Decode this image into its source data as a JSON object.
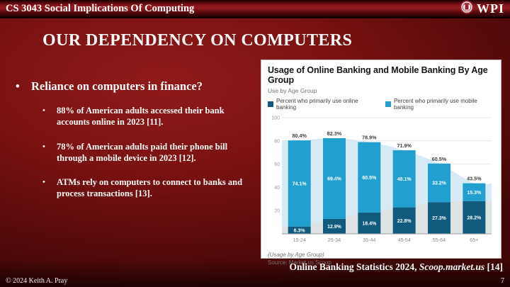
{
  "header": {
    "course_title": "CS 3043 Social Implications Of Computing",
    "logo_text": "WPI"
  },
  "slide": {
    "title": "OUR DEPENDENCY ON COMPUTERS",
    "bullets": {
      "main": "Reliance on computers in finance?",
      "sub": [
        "88% of American adults accessed their bank accounts online in 2023 [11].",
        "78% of American adults paid their phone bill through a mobile device in 2023 [12].",
        "ATMs rely on computers to connect to banks and process transactions [13]."
      ]
    },
    "caption": {
      "text": "Online Banking Statistics 2024, ",
      "italic": "Scoop.market.us",
      "suffix": " [14]"
    }
  },
  "footer": {
    "copyright": "© 2024 Keith A. Pray",
    "page_number": "7"
  },
  "chart_data": {
    "type": "bar",
    "stacked": true,
    "title": "Usage of Online Banking and Mobile Banking By Age Group",
    "subtitle": "Use by Age Group",
    "categories": [
      "15-24",
      "25-34",
      "35-44",
      "45-54",
      "55-64",
      "65+"
    ],
    "series": [
      {
        "name": "Percent who primarily use online banking",
        "values": [
          6.3,
          12.9,
          18.4,
          22.8,
          27.3,
          28.2
        ],
        "color": "#0f5a7d"
      },
      {
        "name": "Percent who primarily use mobile banking",
        "values": [
          74.1,
          69.4,
          60.5,
          49.1,
          33.2,
          15.3
        ],
        "color": "#21a0cf"
      }
    ],
    "totals": [
      80.4,
      82.3,
      78.9,
      71.9,
      60.5,
      43.5
    ],
    "ylim": [
      0,
      100
    ],
    "yticks": [
      20,
      40,
      60,
      80,
      100
    ],
    "grid": true,
    "legend_position": "top",
    "trend_total_color": "#d6eaf5",
    "trend_online_color": "#dde1e4",
    "footnote": "(Usage by Age Group)",
    "source": "Source: Market.us Scoop"
  }
}
